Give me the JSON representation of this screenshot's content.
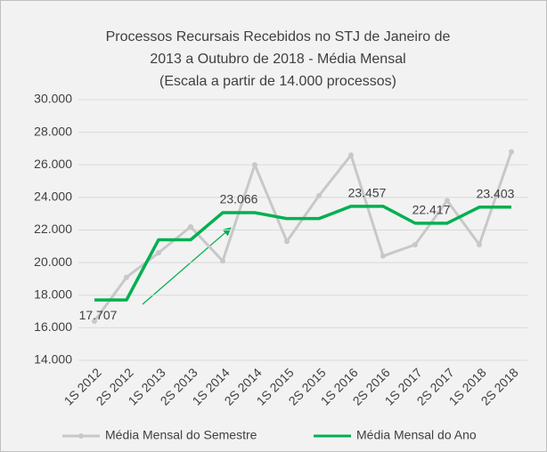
{
  "chart_data": {
    "type": "line",
    "title": [
      "Processos Recursais Recebidos no STJ de Janeiro de",
      "2013 a Outubro de 2018 - Média Mensal",
      "(Escala a partir de 14.000 processos)"
    ],
    "categories": [
      "1S 2012",
      "2S 2012",
      "1S 2013",
      "2S 2013",
      "1S 2014",
      "2S 2014",
      "1S 2015",
      "2S 2015",
      "1S 2016",
      "2S 2016",
      "1S 2017",
      "2S 2017",
      "1S 2018",
      "2S 2018"
    ],
    "series": [
      {
        "name": "Média Mensal do Semestre",
        "color": "#c8c8c8",
        "values": [
          16400,
          19100,
          20600,
          22200,
          20100,
          26000,
          21300,
          24100,
          26600,
          20400,
          21100,
          23800,
          21100,
          26800
        ]
      },
      {
        "name": "Média Mensal do Ano",
        "color": "#00b050",
        "values": [
          17707,
          17707,
          21400,
          21400,
          23066,
          23066,
          22700,
          22700,
          23457,
          23457,
          22417,
          22417,
          23403,
          23403
        ],
        "value_labels": [
          "17.707",
          null,
          null,
          null,
          "23.066",
          null,
          null,
          null,
          "23.457",
          null,
          "22.417",
          null,
          "23.403",
          null
        ]
      }
    ],
    "ylim": [
      14000,
      30000
    ],
    "yticks": [
      {
        "value": 14000,
        "label": "14.000"
      },
      {
        "value": 16000,
        "label": "16.000"
      },
      {
        "value": 18000,
        "label": "18.000"
      },
      {
        "value": 20000,
        "label": "20.000"
      },
      {
        "value": 22000,
        "label": "22.000"
      },
      {
        "value": 24000,
        "label": "24.000"
      },
      {
        "value": 26000,
        "label": "26.000"
      },
      {
        "value": 28000,
        "label": "28.000"
      },
      {
        "value": 30000,
        "label": "30.000"
      }
    ],
    "grid": true
  }
}
